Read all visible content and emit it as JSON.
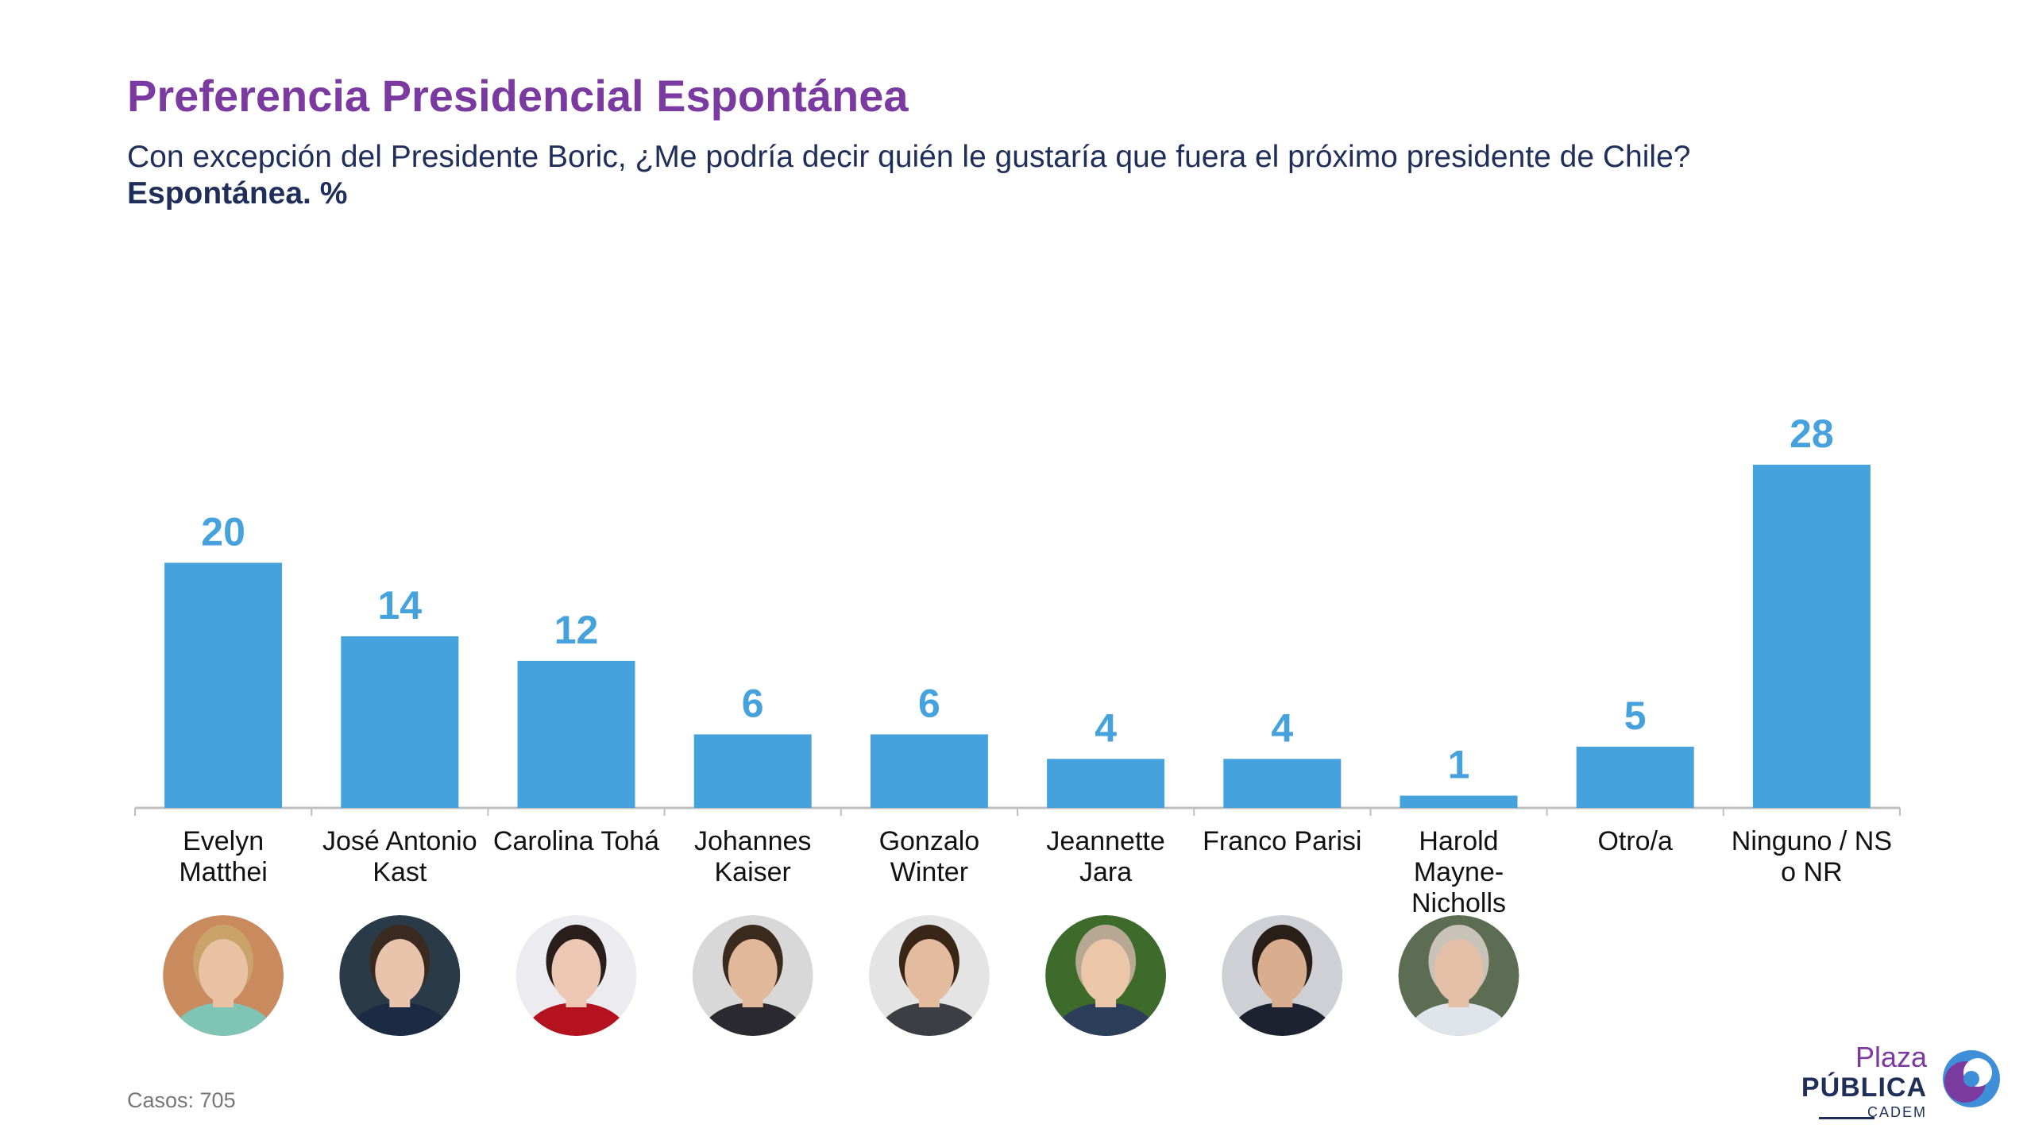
{
  "header": {
    "title": "Preferencia Presidencial Espontánea",
    "question": "Con excepción del Presidente Boric, ¿Me podría decir quién le gustaría que fuera el próximo presidente de Chile?",
    "unit_label": "Espontánea. %"
  },
  "footer": {
    "cases": "Casos: 705"
  },
  "logo": {
    "line1": "Plaza",
    "line2": "PÚBLICA",
    "line3": "CADEM"
  },
  "colors": {
    "bar": "#46a2dc",
    "title": "#7a3aa0",
    "text": "#1f2f5a"
  },
  "chart_data": {
    "type": "bar",
    "title": "Preferencia Presidencial Espontánea",
    "xlabel": "",
    "ylabel": "",
    "ylim": [
      0,
      28
    ],
    "grid": false,
    "legend": "none",
    "categories": [
      [
        "Evelyn",
        "Matthei"
      ],
      [
        "José Antonio",
        "Kast"
      ],
      [
        "Carolina Tohá"
      ],
      [
        "Johannes",
        "Kaiser"
      ],
      [
        "Gonzalo",
        "Winter"
      ],
      [
        "Jeannette",
        "Jara"
      ],
      [
        "Franco Parisi"
      ],
      [
        "Harold",
        "Mayne-",
        "Nicholls"
      ],
      [
        "Otro/a"
      ],
      [
        "Ninguno / NS",
        "o NR"
      ]
    ],
    "values": [
      20,
      14,
      12,
      6,
      6,
      4,
      4,
      1,
      5,
      28
    ],
    "portraits": [
      {
        "name": "portrait-evelyn-matthei",
        "bg": "#c98a5e",
        "skin": "#e9c2a4",
        "hair": "#c9a36a",
        "shirt": "#7fc4b4"
      },
      {
        "name": "portrait-jose-antonio-kast",
        "bg": "#2a3a46",
        "skin": "#e8c4ad",
        "hair": "#3a2a20",
        "shirt": "#1d2a44"
      },
      {
        "name": "portrait-carolina-toha",
        "bg": "#ececf0",
        "skin": "#ecc7b3",
        "hair": "#2a1e1c",
        "shirt": "#b5121f"
      },
      {
        "name": "portrait-johannes-kaiser",
        "bg": "#d8d8d8",
        "skin": "#e2b89a",
        "hair": "#3b2a1e",
        "shirt": "#2a2a30"
      },
      {
        "name": "portrait-gonzalo-winter",
        "bg": "#e4e4e4",
        "skin": "#e3bca0",
        "hair": "#3a2616",
        "shirt": "#3c3e44"
      },
      {
        "name": "portrait-jeannette-jara",
        "bg": "#3e6b2c",
        "skin": "#ecc6a8",
        "hair": "#b6a892",
        "shirt": "#2d3e5a"
      },
      {
        "name": "portrait-franco-parisi",
        "bg": "#cfcfd6",
        "skin": "#d9ae8e",
        "hair": "#2a1e18",
        "shirt": "#1e2230"
      },
      {
        "name": "portrait-harold-mayne-nicholls",
        "bg": "#5d6d54",
        "skin": "#e2bfa6",
        "hair": "#c9c2b8",
        "shirt": "#dfe3ea"
      }
    ]
  }
}
